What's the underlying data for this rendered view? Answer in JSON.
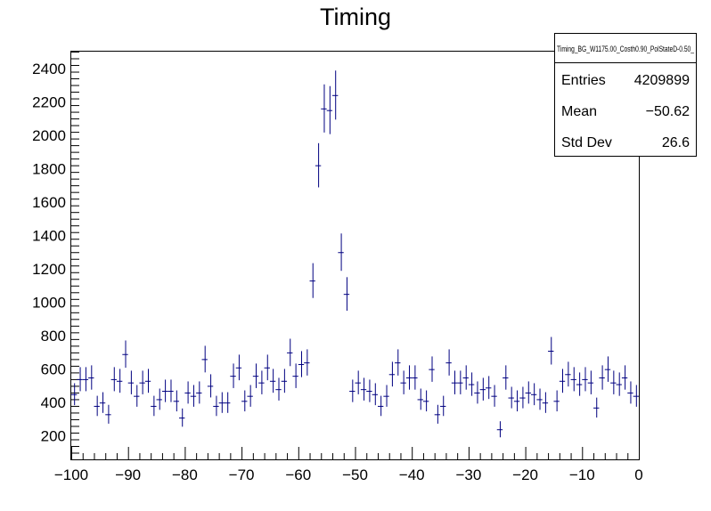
{
  "chart_data": {
    "type": "histogram",
    "title": "Timing",
    "xlabel": "",
    "ylabel": "",
    "xlim": [
      -100,
      0
    ],
    "ylim": [
      60,
      2500
    ],
    "x_ticks": [
      -100,
      -90,
      -80,
      -70,
      -60,
      -50,
      -40,
      -30,
      -20,
      -10,
      0
    ],
    "x_tick_labels": [
      "−100",
      "−90",
      "−80",
      "−70",
      "−60",
      "−50",
      "−40",
      "−30",
      "−20",
      "−10",
      "0"
    ],
    "y_ticks": [
      200,
      400,
      600,
      800,
      1000,
      1200,
      1400,
      1600,
      1800,
      2000,
      2200,
      2400
    ],
    "y_tick_labels": [
      "200",
      "400",
      "600",
      "800",
      "1000",
      "1200",
      "1400",
      "1600",
      "1800",
      "2000",
      "2200",
      "2400"
    ],
    "marker_color": "#000080",
    "bin_width": 1,
    "x": [
      -99.5,
      -98.5,
      -97.5,
      -96.5,
      -95.5,
      -94.5,
      -93.5,
      -92.5,
      -91.5,
      -90.5,
      -89.5,
      -88.5,
      -87.5,
      -86.5,
      -85.5,
      -84.5,
      -83.5,
      -82.5,
      -81.5,
      -80.5,
      -79.5,
      -78.5,
      -77.5,
      -76.5,
      -75.5,
      -74.5,
      -73.5,
      -72.5,
      -71.5,
      -70.5,
      -69.5,
      -68.5,
      -67.5,
      -66.5,
      -65.5,
      -64.5,
      -63.5,
      -62.5,
      -61.5,
      -60.5,
      -59.5,
      -58.5,
      -57.5,
      -56.5,
      -55.5,
      -54.5,
      -53.5,
      -52.5,
      -51.5,
      -50.5,
      -49.5,
      -48.5,
      -47.5,
      -46.5,
      -45.5,
      -44.5,
      -43.5,
      -42.5,
      -41.5,
      -40.5,
      -39.5,
      -38.5,
      -37.5,
      -36.5,
      -35.5,
      -34.5,
      -33.5,
      -32.5,
      -31.5,
      -30.5,
      -29.5,
      -28.5,
      -27.5,
      -26.5,
      -25.5,
      -24.5,
      -23.5,
      -22.5,
      -21.5,
      -20.5,
      -19.5,
      -18.5,
      -17.5,
      -16.5,
      -15.5,
      -14.5,
      -13.5,
      -12.5,
      -11.5,
      -10.5,
      -9.5,
      -8.5,
      -7.5,
      -6.5,
      -5.5,
      -4.5,
      -3.5,
      -2.5,
      -1.5,
      -0.5
    ],
    "y": [
      450,
      540,
      540,
      550,
      380,
      400,
      330,
      540,
      530,
      690,
      520,
      440,
      520,
      530,
      380,
      420,
      470,
      470,
      410,
      310,
      460,
      440,
      460,
      660,
      500,
      380,
      400,
      400,
      560,
      610,
      410,
      440,
      560,
      520,
      610,
      530,
      480,
      530,
      700,
      560,
      630,
      640,
      1130,
      1820,
      2160,
      2150,
      2240,
      1300,
      1050,
      470,
      520,
      480,
      470,
      450,
      380,
      440,
      570,
      640,
      520,
      550,
      550,
      420,
      410,
      600,
      330,
      380,
      640,
      520,
      520,
      550,
      510,
      460,
      480,
      490,
      440,
      240,
      550,
      430,
      410,
      430,
      460,
      450,
      420,
      400,
      710,
      410,
      530,
      570,
      540,
      510,
      540,
      520,
      370,
      550,
      600,
      520,
      510,
      550,
      460,
      440
    ],
    "stats": {
      "name": "Timing_BG_W1175.00_Costh0.90_PolStateD-0.50_",
      "rows": [
        {
          "label": "Entries",
          "value": "4209899"
        },
        {
          "label": "Mean",
          "value": "−50.62"
        },
        {
          "label": "Std Dev",
          "value": "26.6"
        }
      ]
    }
  }
}
